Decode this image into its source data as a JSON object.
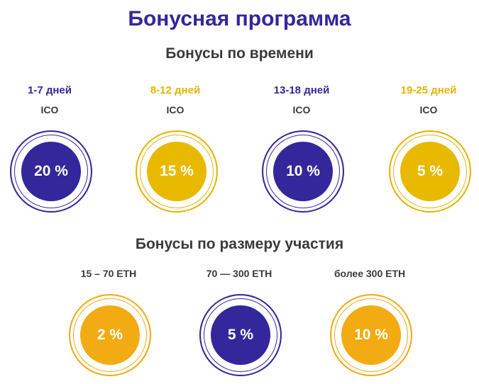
{
  "title": "Бонусная программа",
  "time_section": {
    "heading": "Бонусы по времени",
    "items": [
      {
        "period": "1-7 дней",
        "label": "ICO",
        "percent": "20 %",
        "color": "#33279b"
      },
      {
        "period": "8-12 дней",
        "label": "ICO",
        "percent": "15 %",
        "color": "#e4b400"
      },
      {
        "period": "13-18 дней",
        "label": "ICO",
        "percent": "10 %",
        "color": "#33279b"
      },
      {
        "period": "19-25 дней",
        "label": "ICO",
        "percent": "5 %",
        "color": "#e4b400"
      }
    ]
  },
  "size_section": {
    "heading": "Бонусы по размеру участия",
    "items": [
      {
        "amount": "15 – 70 ETH",
        "percent": "2 %",
        "color": "#f0a912"
      },
      {
        "amount": "70 — 300 ETH",
        "percent": "5 %",
        "color": "#33279b"
      },
      {
        "amount": "более 300 ETH",
        "percent": "10 %",
        "color": "#f0a912"
      }
    ]
  }
}
